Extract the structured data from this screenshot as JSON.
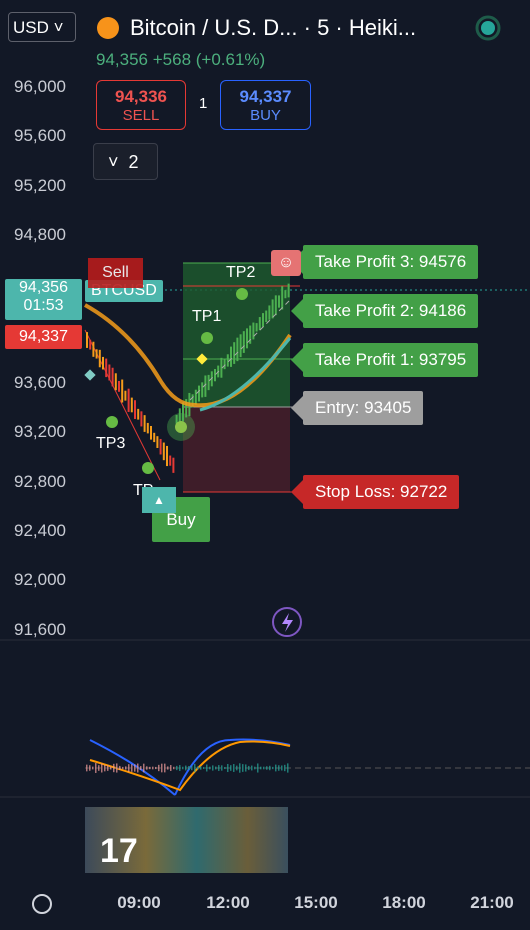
{
  "header": {
    "currency": "USD",
    "symbol": "Bitcoin / U.S. D...",
    "interval": "· 5 · Heiki...",
    "price": "94,356",
    "change": "+568 (+0.61%)"
  },
  "order": {
    "sell_price": "94,336",
    "sell_label": "SELL",
    "spread": "1",
    "buy_price": "94,337",
    "buy_label": "BUY"
  },
  "indicators": {
    "count": "2"
  },
  "price_axis": [
    "96,000",
    "95,600",
    "95,200",
    "94,800",
    "93,600",
    "93,200",
    "92,800",
    "92,400",
    "92,000",
    "91,600"
  ],
  "time_axis": [
    "09:00",
    "12:00",
    "15:00",
    "18:00",
    "21:00"
  ],
  "badges": {
    "last_price": "94,356",
    "countdown": "01:53",
    "symbol_tag": "BTCUSD",
    "bid": "94,337"
  },
  "levels": {
    "tp3": "Take Profit 3: 94576",
    "tp2": "Take Profit 2: 94186",
    "tp1": "Take Profit 1: 93795",
    "entry": "Entry: 93405",
    "stop": "Stop Loss: 92722"
  },
  "markers": {
    "tp2": "TP2",
    "tp1": "TP1",
    "tp3": "TP3",
    "tp": "TP",
    "sell": "Sell",
    "buy": "Buy"
  }
}
